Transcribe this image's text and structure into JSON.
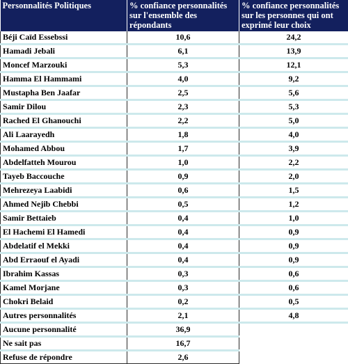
{
  "headers": [
    "Personnalités Politiques",
    "% confiance personnalités sur l'ensemble des répondants",
    "% confiance personnalités sur les personnes qui ont exprimé leur choix"
  ],
  "rows": [
    {
      "name": "Béji Caïd Essebssi",
      "all": "10,6",
      "expressed": "24,2"
    },
    {
      "name": "Hamadi Jebali",
      "all": "6,1",
      "expressed": "13,9"
    },
    {
      "name": "Moncef Marzouki",
      "all": "5,3",
      "expressed": "12,1"
    },
    {
      "name": "Hamma El Hammami",
      "all": "4,0",
      "expressed": "9,2"
    },
    {
      "name": "Mustapha Ben Jaafar",
      "all": "2,5",
      "expressed": "5,6"
    },
    {
      "name": "Samir Dilou",
      "all": "2,3",
      "expressed": "5,3"
    },
    {
      "name": "Rached El Ghanouchi",
      "all": "2,2",
      "expressed": "5,0"
    },
    {
      "name": "Ali Laarayedh",
      "all": "1,8",
      "expressed": "4,0"
    },
    {
      "name": "Mohamed Abbou",
      "all": "1,7",
      "expressed": "3,9"
    },
    {
      "name": "Abdelfatteh Mourou",
      "all": "1,0",
      "expressed": "2,2"
    },
    {
      "name": "Tayeb Baccouche",
      "all": "0,9",
      "expressed": "2,0"
    },
    {
      "name": "Mehrezeya Laabidi",
      "all": "0,6",
      "expressed": "1,5"
    },
    {
      "name": "Ahmed Nejib Chebbi",
      "all": "0,5",
      "expressed": "1,2"
    },
    {
      "name": "Samir Bettaieb",
      "all": "0,4",
      "expressed": "1,0"
    },
    {
      "name": "El Hachemi El Hamedi",
      "all": "0,4",
      "expressed": "0,9"
    },
    {
      "name": "Abdelatif el Mekki",
      "all": "0,4",
      "expressed": "0,9"
    },
    {
      "name": "Abd Erraouf el Ayadi",
      "all": "0,4",
      "expressed": "0,9"
    },
    {
      "name": "Ibrahim Kassas",
      "all": "0,3",
      "expressed": "0,6"
    },
    {
      "name": "Kamel Morjane",
      "all": "0,3",
      "expressed": "0,6"
    },
    {
      "name": "Chokri Belaid",
      "all": "0,2",
      "expressed": "0,5"
    },
    {
      "name": "Autres personnalités",
      "all": "2,1",
      "expressed": "4,8"
    }
  ],
  "extra_rows": [
    {
      "name": "Aucune personnalité",
      "all": "36,9"
    },
    {
      "name": "Ne sait pas",
      "all": "16,7"
    },
    {
      "name": "Refuse de répondre",
      "all": "2,6"
    }
  ]
}
